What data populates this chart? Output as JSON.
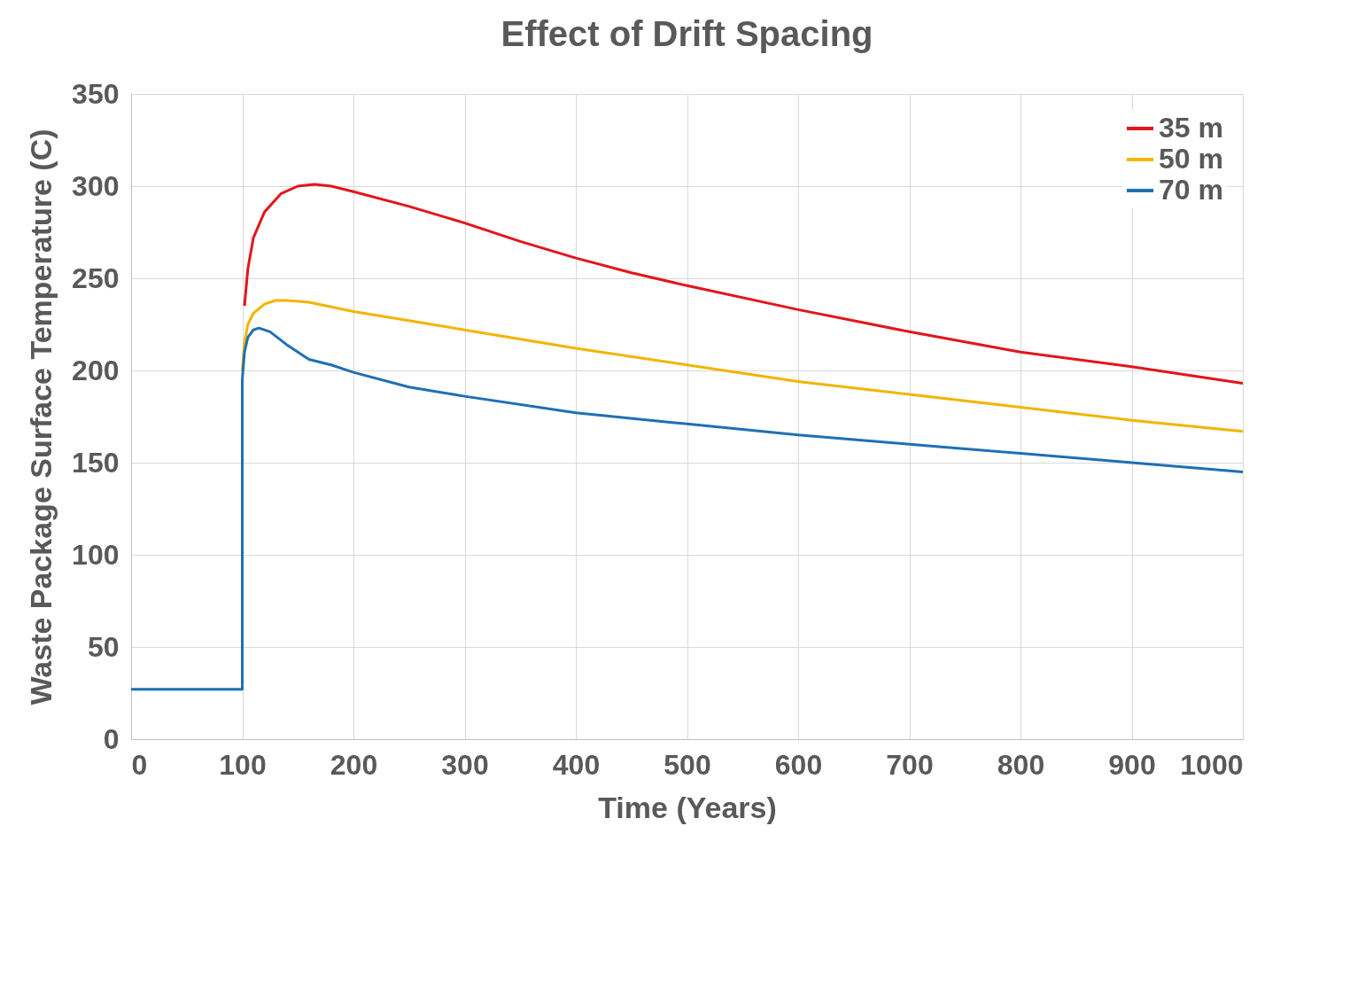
{
  "chart_data": {
    "type": "line",
    "title": "Effect of Drift Spacing",
    "xlabel": "Time (Years)",
    "ylabel": "Waste Package Surface Temperature (C)",
    "xlim": [
      0,
      1000
    ],
    "xticks": [
      0,
      100,
      200,
      300,
      400,
      500,
      600,
      700,
      800,
      900,
      1000
    ],
    "ylim": [
      0,
      350
    ],
    "yticks": [
      0,
      50,
      100,
      150,
      200,
      250,
      300,
      350
    ],
    "grid": true,
    "legend": "top right",
    "marker": "none",
    "line_style": "solid",
    "series": [
      {
        "name": "35 m",
        "color": "#e3151b",
        "x": [
          102,
          105,
          110,
          120,
          135,
          150,
          165,
          180,
          200,
          250,
          300,
          350,
          400,
          450,
          500,
          600,
          700,
          800,
          900,
          1000
        ],
        "values": [
          235,
          255,
          272,
          286,
          296,
          300,
          301,
          300,
          297,
          289,
          280,
          270,
          261,
          253,
          246,
          233,
          221,
          210,
          202,
          193
        ]
      },
      {
        "name": "50 m",
        "color": "#f2b500",
        "x": [
          100,
          102,
          105,
          110,
          120,
          130,
          140,
          160,
          200,
          250,
          300,
          400,
          500,
          600,
          700,
          800,
          900,
          1000
        ],
        "values": [
          200,
          215,
          225,
          231,
          236,
          238,
          238,
          237,
          232,
          227,
          222,
          212,
          203,
          194,
          187,
          180,
          173,
          167
        ]
      },
      {
        "name": "70 m",
        "color": "#1f6fb5",
        "x": [
          0,
          100,
          100,
          102,
          105,
          110,
          115,
          125,
          140,
          160,
          180,
          200,
          250,
          300,
          400,
          500,
          600,
          700,
          800,
          900,
          1000
        ],
        "values": [
          27,
          27,
          195,
          210,
          218,
          222,
          223,
          221,
          214,
          206,
          203,
          199,
          191,
          186,
          177,
          171,
          165,
          160,
          155,
          150,
          145
        ]
      }
    ]
  }
}
